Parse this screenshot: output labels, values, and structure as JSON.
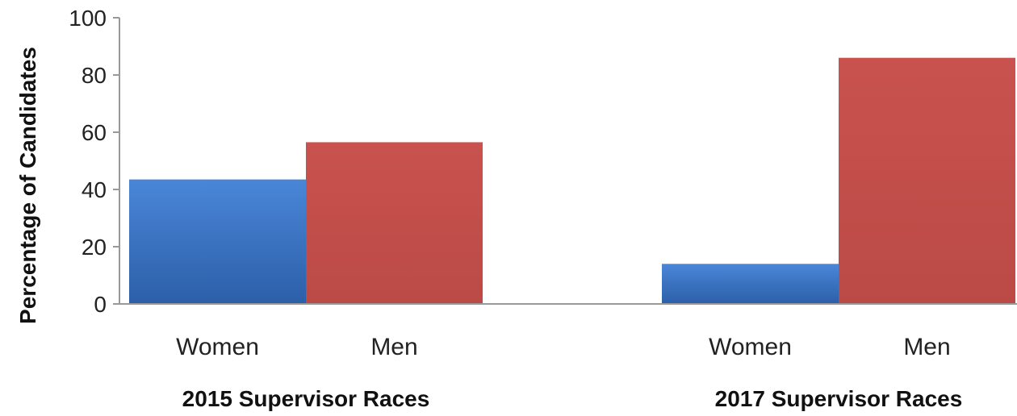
{
  "chart_data": {
    "type": "bar",
    "ylabel": "Percentage of Candidates",
    "ylim": [
      0,
      100
    ],
    "yticks": [
      0,
      20,
      40,
      60,
      80,
      100
    ],
    "grid": false,
    "groups": [
      {
        "label": "2015 Supervisor Races",
        "bars": [
          {
            "category": "Women",
            "value": 43.5,
            "color": "#3a72c4"
          },
          {
            "category": "Men",
            "value": 56.5,
            "color": "#c0504d"
          }
        ]
      },
      {
        "label": "2017 Supervisor Races",
        "bars": [
          {
            "category": "Women",
            "value": 14,
            "color": "#3a72c4"
          },
          {
            "category": "Men",
            "value": 86,
            "color": "#c0504d"
          }
        ]
      }
    ]
  }
}
